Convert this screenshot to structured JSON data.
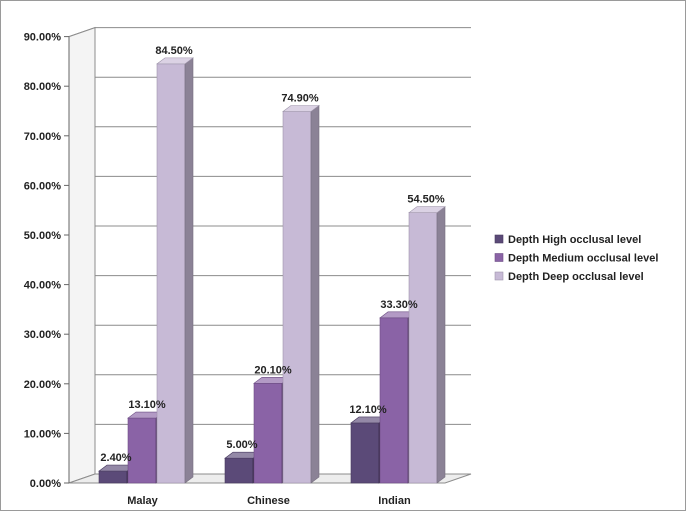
{
  "chart_data": {
    "type": "bar",
    "title": "",
    "xlabel": "",
    "ylabel": "",
    "categories": [
      "Malay",
      "Chinese",
      "Indian"
    ],
    "series": [
      {
        "name": "Depth High occlusal level",
        "values": [
          2.4,
          5.0,
          12.1
        ],
        "labels": [
          "2.40%",
          "5.00%",
          "12.10%"
        ],
        "color": "#5b4a78"
      },
      {
        "name": "Depth Medium occlusal level",
        "values": [
          13.1,
          20.1,
          33.3
        ],
        "labels": [
          "13.10%",
          "20.10%",
          "33.30%"
        ],
        "color": "#8a63a6"
      },
      {
        "name": "Depth Deep occlusal level",
        "values": [
          84.5,
          74.9,
          54.5
        ],
        "labels": [
          "84.50%",
          "74.90%",
          "54.50%"
        ],
        "color": "#c7bad6"
      }
    ],
    "ylim": [
      0,
      90
    ],
    "yticks": [
      "0.00%",
      "10.00%",
      "20.00%",
      "30.00%",
      "40.00%",
      "50.00%",
      "60.00%",
      "70.00%",
      "80.00%",
      "90.00%"
    ],
    "grid": true,
    "legend": "right",
    "three_d": true
  }
}
